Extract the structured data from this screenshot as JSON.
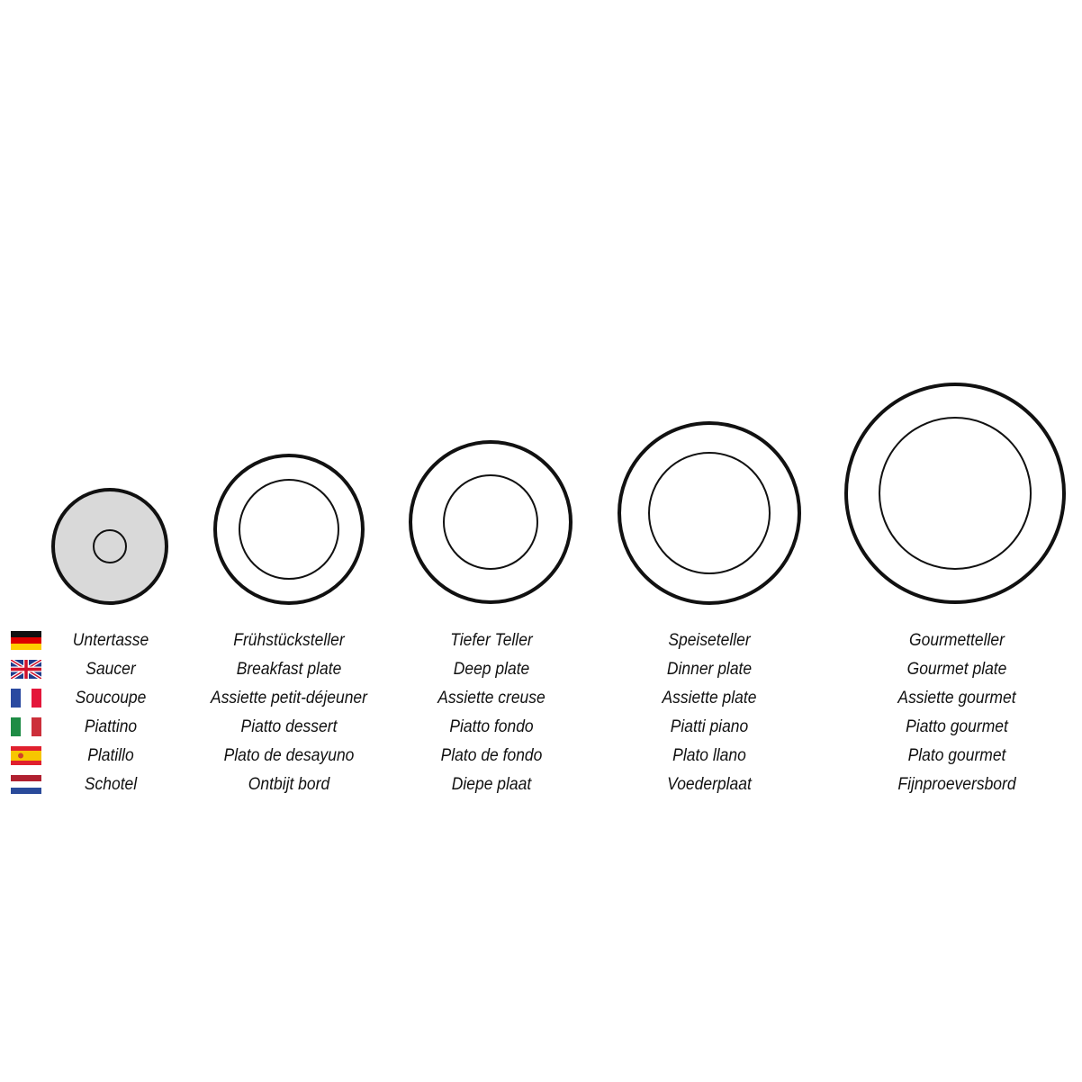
{
  "languages": [
    {
      "code": "de",
      "flag": "germany-flag"
    },
    {
      "code": "en",
      "flag": "uk-flag"
    },
    {
      "code": "fr",
      "flag": "france-flag"
    },
    {
      "code": "it",
      "flag": "italy-flag"
    },
    {
      "code": "es",
      "flag": "spain-flag"
    },
    {
      "code": "nl",
      "flag": "netherlands-flag"
    }
  ],
  "plates": [
    {
      "key": "saucer",
      "fill": "#d9d9d9",
      "labels": [
        "Untertasse",
        "Saucer",
        "Soucoupe",
        "Piattino",
        "Platillo",
        "Schotel"
      ]
    },
    {
      "key": "breakfast-plate",
      "fill": "#ffffff",
      "labels": [
        "Frühstücksteller",
        "Breakfast plate",
        "Assiette petit-déjeuner",
        "Piatto dessert",
        "Plato de desayuno",
        "Ontbijt bord"
      ]
    },
    {
      "key": "deep-plate",
      "fill": "#ffffff",
      "labels": [
        "Tiefer Teller",
        "Deep plate",
        "Assiette creuse",
        "Piatto fondo",
        "Plato de fondo",
        "Diepe plaat"
      ]
    },
    {
      "key": "dinner-plate",
      "fill": "#ffffff",
      "labels": [
        "Speiseteller",
        "Dinner plate",
        "Assiette plate",
        "Piatti piano",
        "Plato llano",
        "Voederplaat"
      ]
    },
    {
      "key": "gourmet-plate",
      "fill": "#ffffff",
      "labels": [
        "Gourmetteller",
        "Gourmet plate",
        "Assiette gourmet",
        "Piatto gourmet",
        "Plato gourmet",
        "Fijnproeversbord"
      ]
    }
  ]
}
